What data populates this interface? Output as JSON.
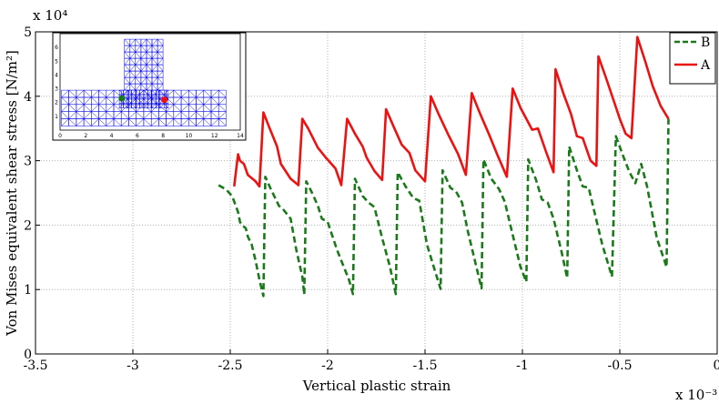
{
  "chart_data": {
    "type": "line",
    "xlabel": "Vertical plastic strain",
    "ylabel": "Von Mises equivalent shear stress [N/m²]",
    "x_multiplier": "x 10⁻³",
    "y_multiplier": "x 10⁴",
    "xlim": [
      -3.5,
      0
    ],
    "ylim": [
      0,
      5
    ],
    "x_ticks": [
      "-3.5",
      "-3",
      "-2.5",
      "-2",
      "-1.5",
      "-1",
      "-0.5",
      "0"
    ],
    "y_ticks": [
      "0",
      "1",
      "2",
      "3",
      "4",
      "5"
    ],
    "grid": true,
    "legend_position": "top-right",
    "series": [
      {
        "name": "B",
        "color": "#1a7a1a",
        "style": "dashed",
        "points": [
          [
            -2.56,
            2.62
          ],
          [
            -2.52,
            2.55
          ],
          [
            -2.49,
            2.45
          ],
          [
            -2.46,
            2.2
          ],
          [
            -2.45,
            2.05
          ],
          [
            -2.44,
            2.0
          ],
          [
            -2.42,
            1.95
          ],
          [
            -2.41,
            1.82
          ],
          [
            -2.39,
            1.7
          ],
          [
            -2.37,
            1.45
          ],
          [
            -2.35,
            1.15
          ],
          [
            -2.33,
            0.9
          ],
          [
            -2.32,
            2.75
          ],
          [
            -2.29,
            2.55
          ],
          [
            -2.25,
            2.3
          ],
          [
            -2.23,
            2.25
          ],
          [
            -2.19,
            2.1
          ],
          [
            -2.16,
            1.6
          ],
          [
            -2.13,
            1.2
          ],
          [
            -2.12,
            0.92
          ],
          [
            -2.11,
            2.68
          ],
          [
            -2.08,
            2.5
          ],
          [
            -2.05,
            2.3
          ],
          [
            -2.03,
            2.1
          ],
          [
            -2.0,
            2.05
          ],
          [
            -1.95,
            1.6
          ],
          [
            -1.89,
            1.15
          ],
          [
            -1.87,
            0.93
          ],
          [
            -1.86,
            2.72
          ],
          [
            -1.82,
            2.45
          ],
          [
            -1.79,
            2.35
          ],
          [
            -1.76,
            2.28
          ],
          [
            -1.72,
            1.8
          ],
          [
            -1.68,
            1.35
          ],
          [
            -1.65,
            0.93
          ],
          [
            -1.64,
            2.82
          ],
          [
            -1.6,
            2.6
          ],
          [
            -1.56,
            2.42
          ],
          [
            -1.53,
            2.38
          ],
          [
            -1.49,
            1.7
          ],
          [
            -1.45,
            1.3
          ],
          [
            -1.42,
            1.01
          ],
          [
            -1.41,
            2.85
          ],
          [
            -1.37,
            2.58
          ],
          [
            -1.34,
            2.52
          ],
          [
            -1.31,
            2.35
          ],
          [
            -1.28,
            1.9
          ],
          [
            -1.24,
            1.4
          ],
          [
            -1.21,
            1.02
          ],
          [
            -1.2,
            3.02
          ],
          [
            -1.16,
            2.72
          ],
          [
            -1.12,
            2.56
          ],
          [
            -1.09,
            2.36
          ],
          [
            -1.05,
            1.85
          ],
          [
            -1.01,
            1.35
          ],
          [
            -0.98,
            1.12
          ],
          [
            -0.97,
            3.02
          ],
          [
            -0.93,
            2.7
          ],
          [
            -0.9,
            2.4
          ],
          [
            -0.87,
            2.35
          ],
          [
            -0.84,
            2.1
          ],
          [
            -0.8,
            1.6
          ],
          [
            -0.77,
            1.18
          ],
          [
            -0.76,
            3.22
          ],
          [
            -0.72,
            2.85
          ],
          [
            -0.69,
            2.6
          ],
          [
            -0.66,
            2.58
          ],
          [
            -0.63,
            2.2
          ],
          [
            -0.59,
            1.7
          ],
          [
            -0.54,
            1.2
          ],
          [
            -0.52,
            3.38
          ],
          [
            -0.48,
            3.05
          ],
          [
            -0.45,
            2.82
          ],
          [
            -0.42,
            2.65
          ],
          [
            -0.39,
            2.95
          ],
          [
            -0.36,
            2.6
          ],
          [
            -0.31,
            1.8
          ],
          [
            -0.26,
            1.35
          ],
          [
            -0.25,
            3.65
          ]
        ]
      },
      {
        "name": "A",
        "color": "#ee1111",
        "style": "solid",
        "points": [
          [
            -2.48,
            2.6
          ],
          [
            -2.47,
            2.85
          ],
          [
            -2.46,
            3.1
          ],
          [
            -2.45,
            3.0
          ],
          [
            -2.43,
            2.95
          ],
          [
            -2.41,
            2.78
          ],
          [
            -2.37,
            2.68
          ],
          [
            -2.35,
            2.6
          ],
          [
            -2.33,
            3.75
          ],
          [
            -2.3,
            3.52
          ],
          [
            -2.26,
            3.22
          ],
          [
            -2.24,
            2.95
          ],
          [
            -2.19,
            2.72
          ],
          [
            -2.15,
            2.62
          ],
          [
            -2.13,
            3.65
          ],
          [
            -2.1,
            3.5
          ],
          [
            -2.05,
            3.2
          ],
          [
            -2.01,
            3.05
          ],
          [
            -1.96,
            2.88
          ],
          [
            -1.93,
            2.62
          ],
          [
            -1.9,
            3.65
          ],
          [
            -1.86,
            3.42
          ],
          [
            -1.82,
            3.22
          ],
          [
            -1.8,
            3.05
          ],
          [
            -1.76,
            2.84
          ],
          [
            -1.72,
            2.7
          ],
          [
            -1.7,
            3.8
          ],
          [
            -1.66,
            3.52
          ],
          [
            -1.62,
            3.25
          ],
          [
            -1.58,
            3.12
          ],
          [
            -1.55,
            2.85
          ],
          [
            -1.5,
            2.68
          ],
          [
            -1.47,
            4.0
          ],
          [
            -1.43,
            3.72
          ],
          [
            -1.38,
            3.4
          ],
          [
            -1.33,
            3.1
          ],
          [
            -1.29,
            2.78
          ],
          [
            -1.26,
            4.05
          ],
          [
            -1.22,
            3.75
          ],
          [
            -1.17,
            3.4
          ],
          [
            -1.13,
            3.1
          ],
          [
            -1.08,
            2.75
          ],
          [
            -1.05,
            4.12
          ],
          [
            -1.01,
            3.82
          ],
          [
            -0.95,
            3.48
          ],
          [
            -0.92,
            3.5
          ],
          [
            -0.88,
            3.15
          ],
          [
            -0.84,
            2.82
          ],
          [
            -0.83,
            4.42
          ],
          [
            -0.79,
            4.05
          ],
          [
            -0.75,
            3.72
          ],
          [
            -0.72,
            3.38
          ],
          [
            -0.69,
            3.35
          ],
          [
            -0.65,
            3.0
          ],
          [
            -0.62,
            2.92
          ],
          [
            -0.61,
            4.62
          ],
          [
            -0.57,
            4.28
          ],
          [
            -0.53,
            3.92
          ],
          [
            -0.5,
            3.65
          ],
          [
            -0.47,
            3.42
          ],
          [
            -0.44,
            3.35
          ],
          [
            -0.41,
            4.92
          ],
          [
            -0.37,
            4.55
          ],
          [
            -0.33,
            4.15
          ],
          [
            -0.29,
            3.85
          ],
          [
            -0.25,
            3.65
          ]
        ]
      }
    ],
    "inset": {
      "description": "finite element mesh with point markers",
      "color": "#0000ee",
      "x_ticks": [
        "0",
        "2",
        "4",
        "6",
        "8",
        "10",
        "12",
        "14"
      ],
      "y_ticks": [
        "1",
        "2",
        "3",
        "4",
        "5",
        "6"
      ],
      "xlim": [
        0,
        14
      ],
      "ylim": [
        0,
        7
      ],
      "markers": [
        {
          "label": "B",
          "x": 4.8,
          "y": 2.3,
          "color": "#1a7a1a"
        },
        {
          "label": "A",
          "x": 8.1,
          "y": 2.2,
          "color": "#ee1111"
        }
      ]
    }
  }
}
